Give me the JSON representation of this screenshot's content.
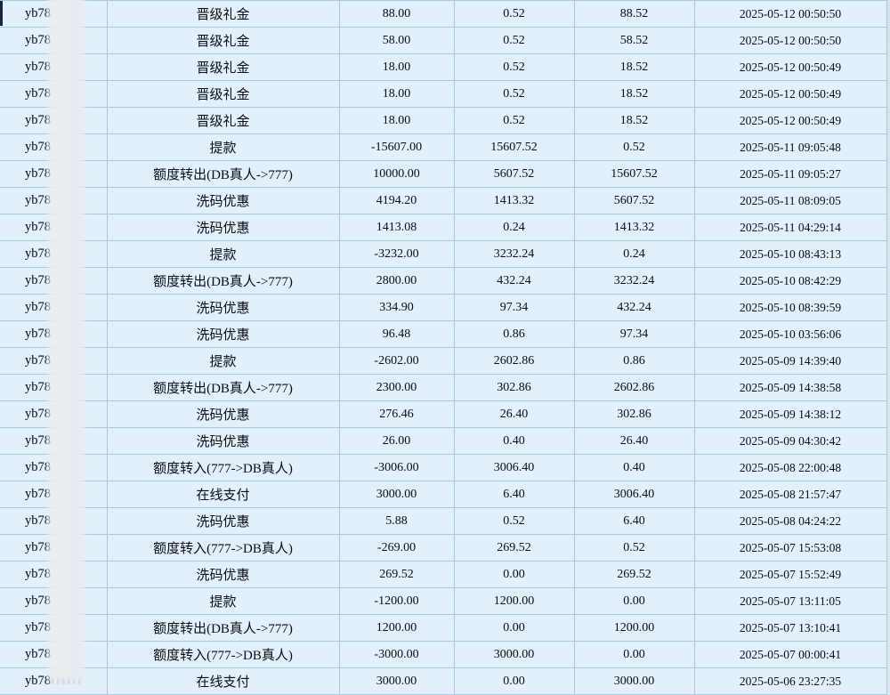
{
  "colors": {
    "cell_bg": "#e2f0fb",
    "border": "#a2cbdc",
    "text": "#0b0b12",
    "blur_overlay": "#e9edf0",
    "corner_fragment": "#182640",
    "edge_strip": "#d9e5ee"
  },
  "transactions": {
    "rows": [
      {
        "user": "yb78",
        "type": "晋级礼金",
        "amount": "88.00",
        "before": "0.52",
        "after": "88.52",
        "time": "2025-05-12 00:50:50"
      },
      {
        "user": "yb78",
        "type": "晋级礼金",
        "amount": "58.00",
        "before": "0.52",
        "after": "58.52",
        "time": "2025-05-12 00:50:50"
      },
      {
        "user": "yb78",
        "type": "晋级礼金",
        "amount": "18.00",
        "before": "0.52",
        "after": "18.52",
        "time": "2025-05-12 00:50:49"
      },
      {
        "user": "yb78",
        "type": "晋级礼金",
        "amount": "18.00",
        "before": "0.52",
        "after": "18.52",
        "time": "2025-05-12 00:50:49"
      },
      {
        "user": "yb78",
        "type": "晋级礼金",
        "amount": "18.00",
        "before": "0.52",
        "after": "18.52",
        "time": "2025-05-12 00:50:49"
      },
      {
        "user": "yb78",
        "type": "提款",
        "amount": "-15607.00",
        "before": "15607.52",
        "after": "0.52",
        "time": "2025-05-11 09:05:48"
      },
      {
        "user": "yb78",
        "type": "额度转出(DB真人->777)",
        "amount": "10000.00",
        "before": "5607.52",
        "after": "15607.52",
        "time": "2025-05-11 09:05:27"
      },
      {
        "user": "yb78",
        "type": "洗码优惠",
        "amount": "4194.20",
        "before": "1413.32",
        "after": "5607.52",
        "time": "2025-05-11 08:09:05"
      },
      {
        "user": "yb78",
        "type": "洗码优惠",
        "amount": "1413.08",
        "before": "0.24",
        "after": "1413.32",
        "time": "2025-05-11 04:29:14"
      },
      {
        "user": "yb78",
        "type": "提款",
        "amount": "-3232.00",
        "before": "3232.24",
        "after": "0.24",
        "time": "2025-05-10 08:43:13"
      },
      {
        "user": "yb78",
        "type": "额度转出(DB真人->777)",
        "amount": "2800.00",
        "before": "432.24",
        "after": "3232.24",
        "time": "2025-05-10 08:42:29"
      },
      {
        "user": "yb78",
        "type": "洗码优惠",
        "amount": "334.90",
        "before": "97.34",
        "after": "432.24",
        "time": "2025-05-10 08:39:59"
      },
      {
        "user": "yb78",
        "type": "洗码优惠",
        "amount": "96.48",
        "before": "0.86",
        "after": "97.34",
        "time": "2025-05-10 03:56:06"
      },
      {
        "user": "yb78",
        "type": "提款",
        "amount": "-2602.00",
        "before": "2602.86",
        "after": "0.86",
        "time": "2025-05-09 14:39:40"
      },
      {
        "user": "yb78",
        "type": "额度转出(DB真人->777)",
        "amount": "2300.00",
        "before": "302.86",
        "after": "2602.86",
        "time": "2025-05-09 14:38:58"
      },
      {
        "user": "yb78",
        "type": "洗码优惠",
        "amount": "276.46",
        "before": "26.40",
        "after": "302.86",
        "time": "2025-05-09 14:38:12"
      },
      {
        "user": "yb78",
        "type": "洗码优惠",
        "amount": "26.00",
        "before": "0.40",
        "after": "26.40",
        "time": "2025-05-09 04:30:42"
      },
      {
        "user": "yb78",
        "type": "额度转入(777->DB真人)",
        "amount": "-3006.00",
        "before": "3006.40",
        "after": "0.40",
        "time": "2025-05-08 22:00:48"
      },
      {
        "user": "yb78",
        "type": "在线支付",
        "amount": "3000.00",
        "before": "6.40",
        "after": "3006.40",
        "time": "2025-05-08 21:57:47"
      },
      {
        "user": "yb78",
        "type": "洗码优惠",
        "amount": "5.88",
        "before": "0.52",
        "after": "6.40",
        "time": "2025-05-08 04:24:22"
      },
      {
        "user": "yb78",
        "type": "额度转入(777->DB真人)",
        "amount": "-269.00",
        "before": "269.52",
        "after": "0.52",
        "time": "2025-05-07 15:53:08"
      },
      {
        "user": "yb78",
        "type": "洗码优惠",
        "amount": "269.52",
        "before": "0.00",
        "after": "269.52",
        "time": "2025-05-07 15:52:49"
      },
      {
        "user": "yb78",
        "type": "提款",
        "amount": "-1200.00",
        "before": "1200.00",
        "after": "0.00",
        "time": "2025-05-07 13:11:05"
      },
      {
        "user": "yb78",
        "type": "额度转出(DB真人->777)",
        "amount": "1200.00",
        "before": "0.00",
        "after": "1200.00",
        "time": "2025-05-07 13:10:41"
      },
      {
        "user": "yb78",
        "type": "额度转入(777->DB真人)",
        "amount": "-3000.00",
        "before": "3000.00",
        "after": "0.00",
        "time": "2025-05-07 00:00:41"
      },
      {
        "user": "yb78",
        "type": "在线支付",
        "amount": "3000.00",
        "before": "0.00",
        "after": "3000.00",
        "time": "2025-05-06 23:27:35"
      }
    ]
  }
}
